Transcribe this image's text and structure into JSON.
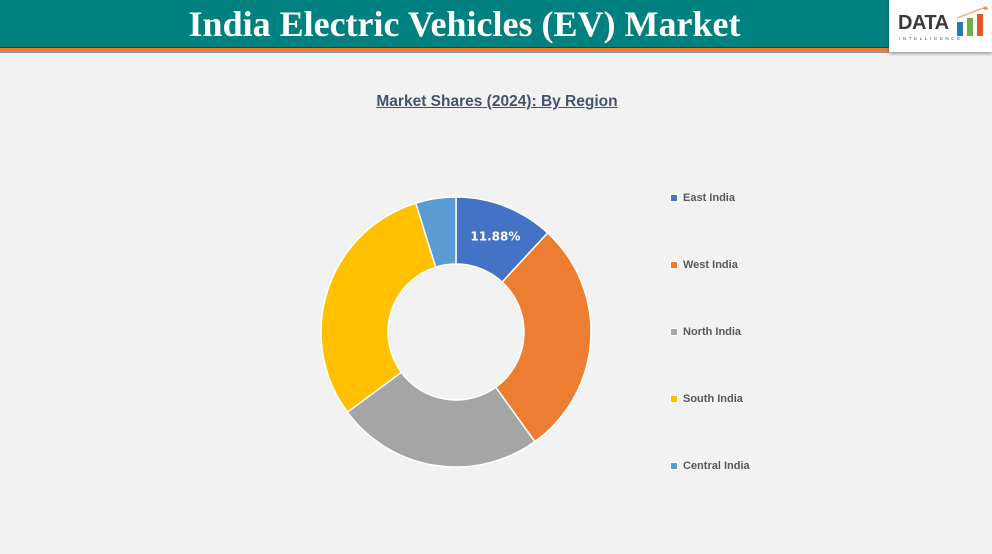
{
  "header": {
    "title": "India Electric Vehicles (EV) Market",
    "background_color": "#00807F",
    "stripe_color": "#ED7D31"
  },
  "logo": {
    "word": "DATA",
    "subtitle": "INTELLIGENCE",
    "bar_colors": [
      "#2E75B6",
      "#70AD47",
      "#ED7D31"
    ]
  },
  "chart_data": {
    "type": "pie",
    "variant": "donut",
    "title": "Market Shares (2024): By Region",
    "categories": [
      "East India",
      "West India",
      "North India",
      "South India",
      "Central India"
    ],
    "values": [
      11.88,
      28.2,
      24.8,
      30.3,
      4.82
    ],
    "units": "%",
    "colors": [
      "#4472C4",
      "#ED7D31",
      "#A5A5A5",
      "#FFC000",
      "#5B9BD5"
    ],
    "data_labels": [
      {
        "category": "East India",
        "text": "11.88%"
      }
    ],
    "start_angle_deg": 0,
    "direction": "clockwise",
    "legend_position": "right",
    "hole_ratio": 0.5
  },
  "legend": {
    "items": [
      {
        "label": "East India",
        "color": "#4472C4"
      },
      {
        "label": "West India",
        "color": "#ED7D31"
      },
      {
        "label": "North India",
        "color": "#A5A5A5"
      },
      {
        "label": "South India",
        "color": "#FFC000"
      },
      {
        "label": "Central India",
        "color": "#5B9BD5"
      }
    ]
  }
}
